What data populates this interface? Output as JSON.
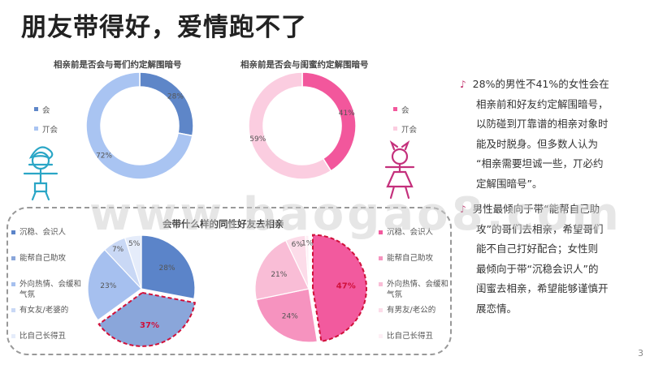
{
  "page_title": "朋友带得好，爱情跑不了",
  "page_number": "3",
  "watermark": "www.baogao8.com",
  "colors": {
    "blue_dark": "#5E86C8",
    "blue_light": "#9FBDF0",
    "pink_dark": "#F2579C",
    "pink_light": "#FBCDE0"
  },
  "chart_data": [
    {
      "type": "donut",
      "title": "相亲前是否会与哥们约定解围暗号",
      "categories": [
        "会",
        "不会"
      ],
      "legend_labels": [
        "会",
        "丌会"
      ],
      "values": [
        28,
        72
      ],
      "value_labels": [
        "28%",
        "72%"
      ],
      "colors": [
        "#5E86C8",
        "#A9C4F2"
      ]
    },
    {
      "type": "donut",
      "title": "相亲前是否会与闺蜜约定解围暗号",
      "categories": [
        "会",
        "不会"
      ],
      "legend_labels": [
        "会",
        "丌会"
      ],
      "values": [
        41,
        59
      ],
      "value_labels": [
        "41%",
        "59%"
      ],
      "colors": [
        "#F2579C",
        "#FBCDE0"
      ]
    },
    {
      "type": "pie",
      "title": "会带什么样的同性好友去相亲",
      "series_name": "男性",
      "categories": [
        "沉稳、会识人",
        "能帮自己助攻",
        "外向热情、会缓和气氛",
        "有女友/老婆的",
        "比自己长得丑"
      ],
      "values": [
        28,
        37,
        23,
        7,
        5
      ],
      "value_labels": [
        "28%",
        "37%",
        "23%",
        "7%",
        "5%"
      ],
      "highlight": "37%",
      "colors": [
        "#5B84C9",
        "#8AA6DA",
        "#A6C0EF",
        "#C9D8F5",
        "#E5ECFA"
      ]
    },
    {
      "type": "pie",
      "series_name": "女性",
      "categories": [
        "沉稳、会识人",
        "能帮自己助攻",
        "外向热情、会缓和气氛",
        "有男友/老公的",
        "比自己长得丑"
      ],
      "values": [
        47,
        24,
        21,
        6,
        1
      ],
      "value_labels": [
        "47%",
        "24%",
        "21%",
        "6%",
        "1%"
      ],
      "highlight": "47%",
      "colors": [
        "#F25A9E",
        "#F693BF",
        "#F9BDD6",
        "#FCDCE9",
        "#FEEFF5"
      ]
    }
  ],
  "bullets": [
    {
      "icon": "music-note-icon",
      "lines": [
        "28%的男性不41%的女性会在",
        "相亲前和好友约定解围暗号，",
        "以防碰到丌靠谱的相亲对象时",
        "能及时脱身。但多数人认为",
        "“相亲需要坦诚一些，丌必约",
        "定解围暗号”。"
      ]
    },
    {
      "icon": "music-note-icon",
      "lines": [
        "男性最倾向于带“能帮自己助",
        "攻”的哥们去相亲，希望哥们",
        "能不自己打好配合；女性则",
        "最倾向于带“沉稳会识人”的",
        "闺蜜去相亲，希望能够谨慎开",
        "展恋情。"
      ]
    }
  ]
}
